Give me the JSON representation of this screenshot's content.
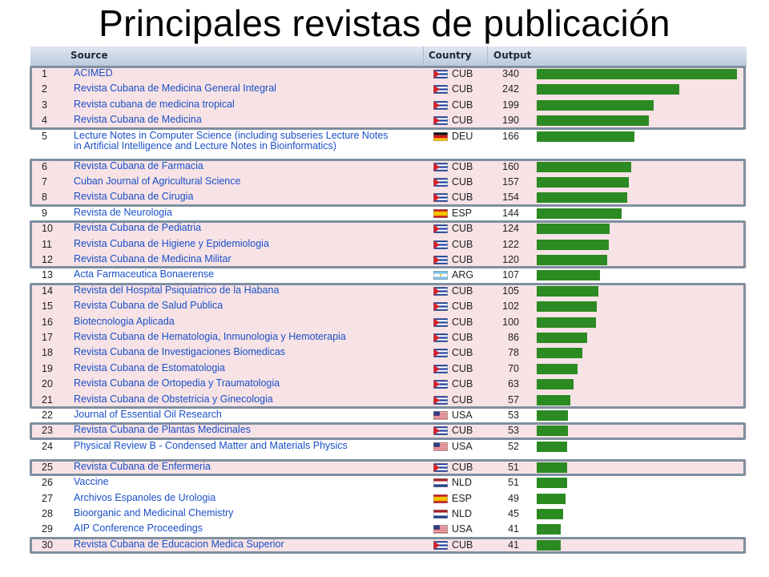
{
  "title": "Principales revistas de publicación",
  "chart_data": {
    "type": "bar",
    "columns": [
      "Source",
      "Country",
      "Output"
    ],
    "max_output": 340,
    "rows": [
      {
        "rank": "1",
        "source": "ACIMED",
        "country": "CUB",
        "flag": "cuba",
        "output": 340,
        "highlight": true
      },
      {
        "rank": "2",
        "source": "Revista Cubana de Medicina General Integral",
        "country": "CUB",
        "flag": "cuba",
        "output": 242,
        "highlight": true
      },
      {
        "rank": "3",
        "source": "Revista cubana de medicina tropical",
        "country": "CUB",
        "flag": "cuba",
        "output": 199,
        "highlight": true
      },
      {
        "rank": "4",
        "source": "Revista Cubana de Medicina",
        "country": "CUB",
        "flag": "cuba",
        "output": 190,
        "highlight": true
      },
      {
        "rank": "5",
        "source": "Lecture Notes in Computer Science (including subseries Lecture Notes in Artificial Intelligence and Lecture Notes in Bioinformatics)",
        "country": "DEU",
        "flag": "germany",
        "output": 166,
        "highlight": false
      },
      {
        "rank": "6",
        "source": "Revista Cubana de Farmacia",
        "country": "CUB",
        "flag": "cuba",
        "output": 160,
        "highlight": true
      },
      {
        "rank": "7",
        "source": "Cuban Journal of Agricultural Science",
        "country": "CUB",
        "flag": "cuba",
        "output": 157,
        "highlight": true
      },
      {
        "rank": "8",
        "source": "Revista Cubana de Cirugia",
        "country": "CUB",
        "flag": "cuba",
        "output": 154,
        "highlight": true
      },
      {
        "rank": "9",
        "source": "Revista de Neurologia",
        "country": "ESP",
        "flag": "spain",
        "output": 144,
        "highlight": false
      },
      {
        "rank": "10",
        "source": "Revista Cubana de Pediatria",
        "country": "CUB",
        "flag": "cuba",
        "output": 124,
        "highlight": true
      },
      {
        "rank": "11",
        "source": "Revista Cubana de Higiene y Epidemiologia",
        "country": "CUB",
        "flag": "cuba",
        "output": 122,
        "highlight": true
      },
      {
        "rank": "12",
        "source": "Revista Cubana de Medicina Militar",
        "country": "CUB",
        "flag": "cuba",
        "output": 120,
        "highlight": true
      },
      {
        "rank": "13",
        "source": "Acta Farmaceutica Bonaerense",
        "country": "ARG",
        "flag": "argentina",
        "output": 107,
        "highlight": false
      },
      {
        "rank": "14",
        "source": "Revista del Hospital Psiquiatrico de la Habana",
        "country": "CUB",
        "flag": "cuba",
        "output": 105,
        "highlight": true
      },
      {
        "rank": "15",
        "source": "Revista Cubana de Salud Publica",
        "country": "CUB",
        "flag": "cuba",
        "output": 102,
        "highlight": true
      },
      {
        "rank": "16",
        "source": "Biotecnologia Aplicada",
        "country": "CUB",
        "flag": "cuba",
        "output": 100,
        "highlight": true
      },
      {
        "rank": "17",
        "source": "Revista Cubana de Hematologia, Inmunologia y Hemoterapia",
        "country": "CUB",
        "flag": "cuba",
        "output": 86,
        "highlight": true
      },
      {
        "rank": "18",
        "source": "Revista Cubana de Investigaciones Biomedicas",
        "country": "CUB",
        "flag": "cuba",
        "output": 78,
        "highlight": true
      },
      {
        "rank": "19",
        "source": "Revista Cubana de Estomatologia",
        "country": "CUB",
        "flag": "cuba",
        "output": 70,
        "highlight": true
      },
      {
        "rank": "20",
        "source": "Revista Cubana de Ortopedia y Traumatologia",
        "country": "CUB",
        "flag": "cuba",
        "output": 63,
        "highlight": true
      },
      {
        "rank": "21",
        "source": "Revista Cubana de Obstetricia y Ginecologia",
        "country": "CUB",
        "flag": "cuba",
        "output": 57,
        "highlight": true
      },
      {
        "rank": "22",
        "source": "Journal of Essential Oil Research",
        "country": "USA",
        "flag": "usa",
        "output": 53,
        "highlight": false
      },
      {
        "rank": "23",
        "source": "Revista Cubana de Plantas Medicinales",
        "country": "CUB",
        "flag": "cuba",
        "output": 53,
        "highlight": true
      },
      {
        "rank": "24",
        "source": "Physical Review B - Condensed Matter and Materials Physics",
        "country": "USA",
        "flag": "usa",
        "output": 52,
        "highlight": false
      },
      {
        "rank": "25",
        "source": "Revista Cubana de Enfermeria",
        "country": "CUB",
        "flag": "cuba",
        "output": 51,
        "highlight": true
      },
      {
        "rank": "26",
        "source": "Vaccine",
        "country": "NLD",
        "flag": "netherlands",
        "output": 51,
        "highlight": false
      },
      {
        "rank": "27",
        "source": "Archivos Espanoles de Urologia",
        "country": "ESP",
        "flag": "spain",
        "output": 49,
        "highlight": false
      },
      {
        "rank": "28",
        "source": "Bioorganic and Medicinal Chemistry",
        "country": "NLD",
        "flag": "netherlands",
        "output": 45,
        "highlight": false
      },
      {
        "rank": "29",
        "source": "AIP Conference Proceedings",
        "country": "USA",
        "flag": "usa",
        "output": 41,
        "highlight": false
      },
      {
        "rank": "30",
        "source": "Revista Cubana de Educacion Medica Superior",
        "country": "CUB",
        "flag": "cuba",
        "output": 41,
        "highlight": true
      }
    ],
    "highlight_groups": [
      [
        1,
        4
      ],
      [
        6,
        8
      ],
      [
        10,
        12
      ],
      [
        14,
        21
      ],
      [
        23,
        23
      ],
      [
        25,
        25
      ],
      [
        30,
        30
      ]
    ],
    "colors": {
      "bar": "#2b8a22",
      "highlight_row": "#f7e2e5",
      "group_border": "#7e8fa0",
      "link": "#1a50c8"
    }
  }
}
